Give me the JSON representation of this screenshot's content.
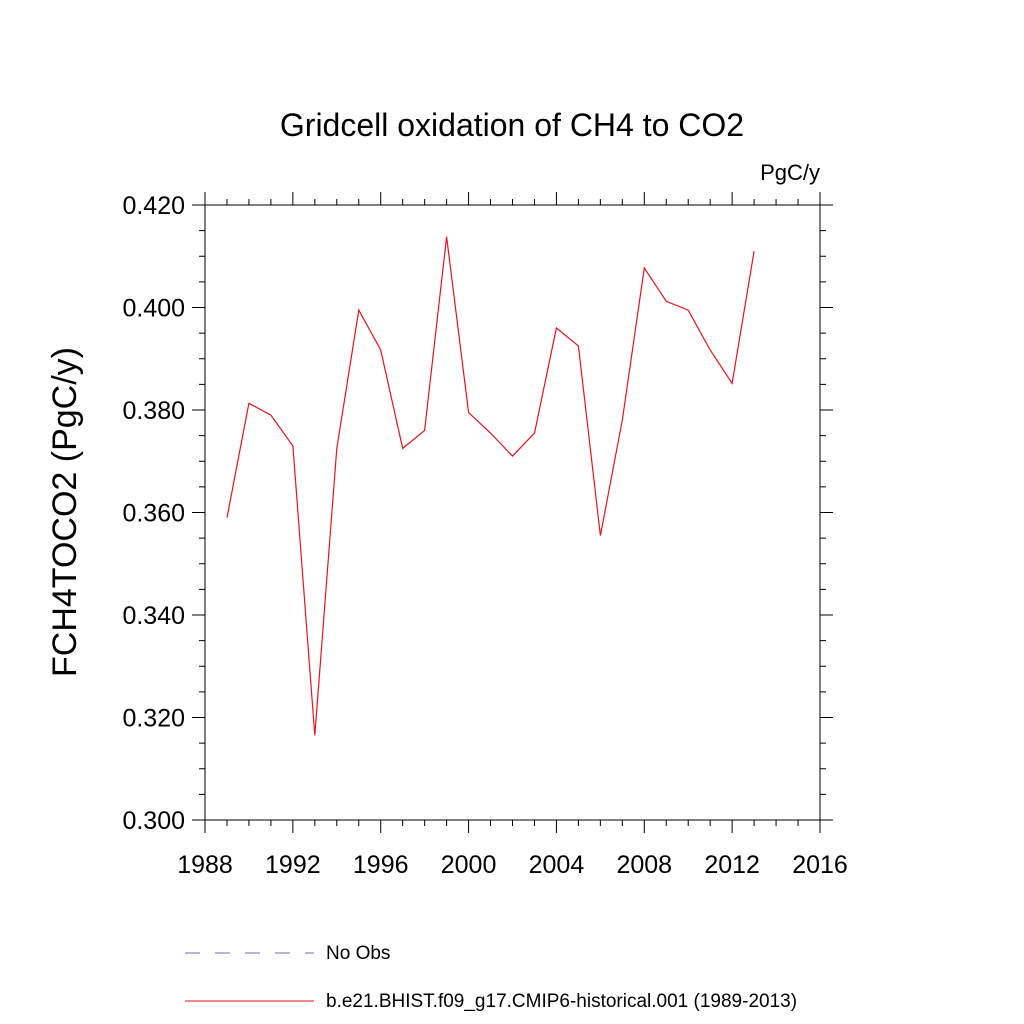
{
  "chart_data": {
    "type": "line",
    "title": "Gridcell oxidation of CH4 to CO2",
    "units": "PgC/y",
    "ylabel": "FCH4TOCO2  (PgC/y)",
    "xlabel": "",
    "xlim": [
      1988,
      2016
    ],
    "ylim": [
      0.3,
      0.42
    ],
    "xticks": [
      1988,
      1992,
      1996,
      2000,
      2004,
      2008,
      2012,
      2016
    ],
    "xtick_labels": [
      "1988",
      "1992",
      "1996",
      "2000",
      "2004",
      "2008",
      "2012",
      "2016"
    ],
    "yticks": [
      0.3,
      0.32,
      0.34,
      0.36,
      0.38,
      0.4,
      0.42
    ],
    "ytick_labels": [
      "0.300",
      "0.320",
      "0.340",
      "0.360",
      "0.380",
      "0.400",
      "0.420"
    ],
    "grid": false,
    "legend_position": "bottom",
    "series": [
      {
        "name": "b.e21.BHIST.f09_g17.CMIP6-historical.001 (1989-2013)",
        "color": "#e8141e",
        "style": "solid",
        "x": [
          1989,
          1990,
          1991,
          1992,
          1993,
          1994,
          1995,
          1996,
          1997,
          1998,
          1999,
          2000,
          2001,
          2002,
          2003,
          2004,
          2005,
          2006,
          2007,
          2008,
          2009,
          2010,
          2011,
          2012,
          2013
        ],
        "y": [
          0.359,
          0.3813,
          0.379,
          0.373,
          0.3165,
          0.3725,
          0.3995,
          0.3917,
          0.3725,
          0.376,
          0.4138,
          0.3795,
          0.3755,
          0.371,
          0.3755,
          0.396,
          0.3925,
          0.3555,
          0.378,
          0.4077,
          0.4012,
          0.3995,
          0.3917,
          0.3852,
          0.411
        ]
      }
    ],
    "legend": [
      {
        "label": "No Obs",
        "color": "#7a6ab5",
        "style": "dashed"
      },
      {
        "label": "b.e21.BHIST.f09_g17.CMIP6-historical.001 (1989-2013)",
        "color": "#e8141e",
        "style": "solid"
      }
    ]
  }
}
